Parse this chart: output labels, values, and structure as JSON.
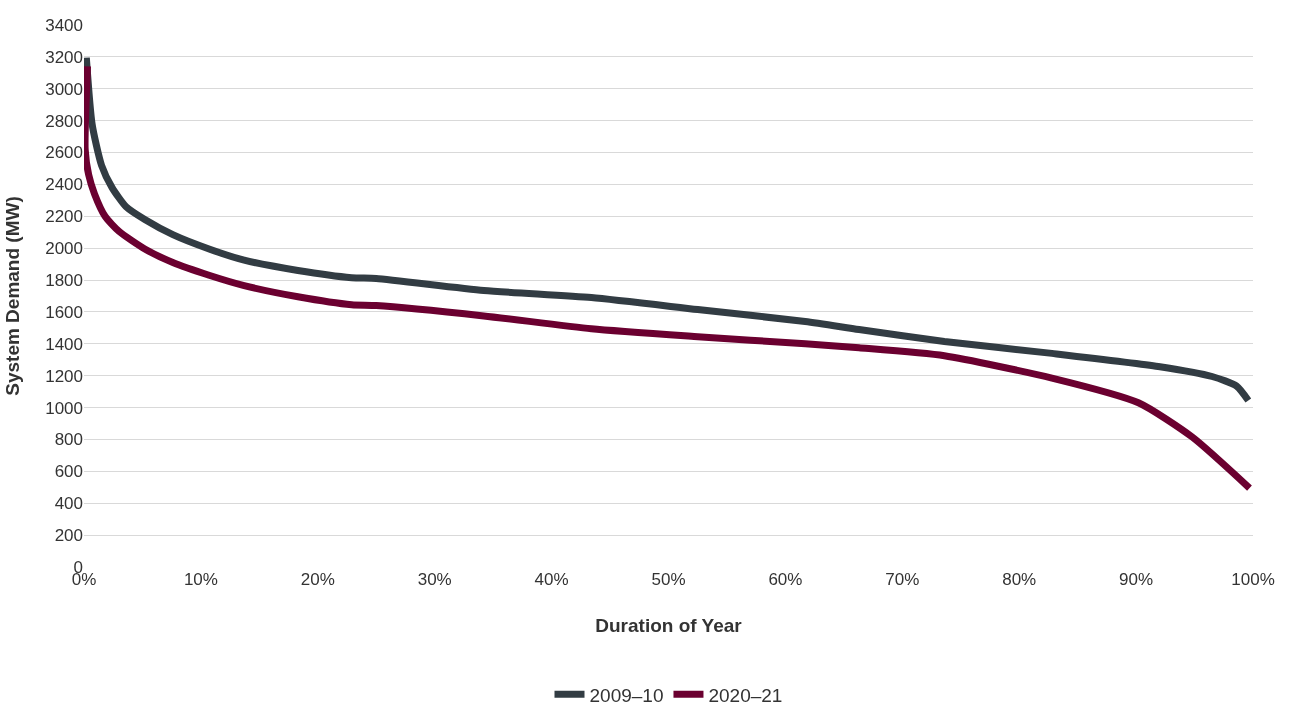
{
  "chart_data": {
    "type": "line",
    "xlabel": "Duration of Year",
    "ylabel": "System Demand (MW)",
    "xlim": [
      0,
      100
    ],
    "xticks": [
      {
        "value": 0,
        "label": "0%"
      },
      {
        "value": 10,
        "label": "10%"
      },
      {
        "value": 20,
        "label": "20%"
      },
      {
        "value": 30,
        "label": "30%"
      },
      {
        "value": 40,
        "label": "40%"
      },
      {
        "value": 50,
        "label": "50%"
      },
      {
        "value": 60,
        "label": "60%"
      },
      {
        "value": 70,
        "label": "70%"
      },
      {
        "value": 80,
        "label": "80%"
      },
      {
        "value": 90,
        "label": "90%"
      },
      {
        "value": 100,
        "label": "100%"
      }
    ],
    "ylim": [
      0,
      3400
    ],
    "yticks": [
      0,
      200,
      400,
      600,
      800,
      1000,
      1200,
      1400,
      1600,
      1800,
      2000,
      2200,
      2400,
      2600,
      2800,
      3000,
      3200,
      3400
    ],
    "grid": "y",
    "legend": "bottom",
    "marker": "none",
    "line_style": "solid",
    "series": [
      {
        "name": "2009–10",
        "color": "#323c43",
        "x": [
          0.2,
          0.7,
          1.5,
          2.4,
          3.6,
          5.2,
          7.6,
          10.7,
          13.7,
          18.3,
          22.9,
          25.0,
          34.2,
          43.4,
          52.5,
          61.7,
          66.3,
          73.6,
          82.8,
          91.9,
          96.5,
          98.6,
          99.6
        ],
        "values": [
          3195,
          2775,
          2520,
          2380,
          2260,
          2180,
          2085,
          1995,
          1925,
          1860,
          1815,
          1810,
          1735,
          1690,
          1615,
          1540,
          1490,
          1415,
          1340,
          1258,
          1195,
          1135,
          1045
        ]
      },
      {
        "name": "2020–21",
        "color": "#6b0030",
        "x": [
          0.3,
          0.1,
          0.4,
          0.9,
          1.8,
          3.0,
          5.2,
          7.6,
          10.7,
          13.7,
          18.3,
          22.9,
          25.0,
          34.2,
          43.4,
          52.5,
          61.7,
          66.3,
          73.6,
          82.8,
          90.2,
          94.8,
          99.7
        ],
        "values": [
          3140,
          2620,
          2460,
          2340,
          2200,
          2105,
          1995,
          1910,
          1830,
          1765,
          1695,
          1645,
          1640,
          1575,
          1495,
          1445,
          1400,
          1375,
          1325,
          1185,
          1030,
          815,
          495
        ]
      }
    ]
  }
}
